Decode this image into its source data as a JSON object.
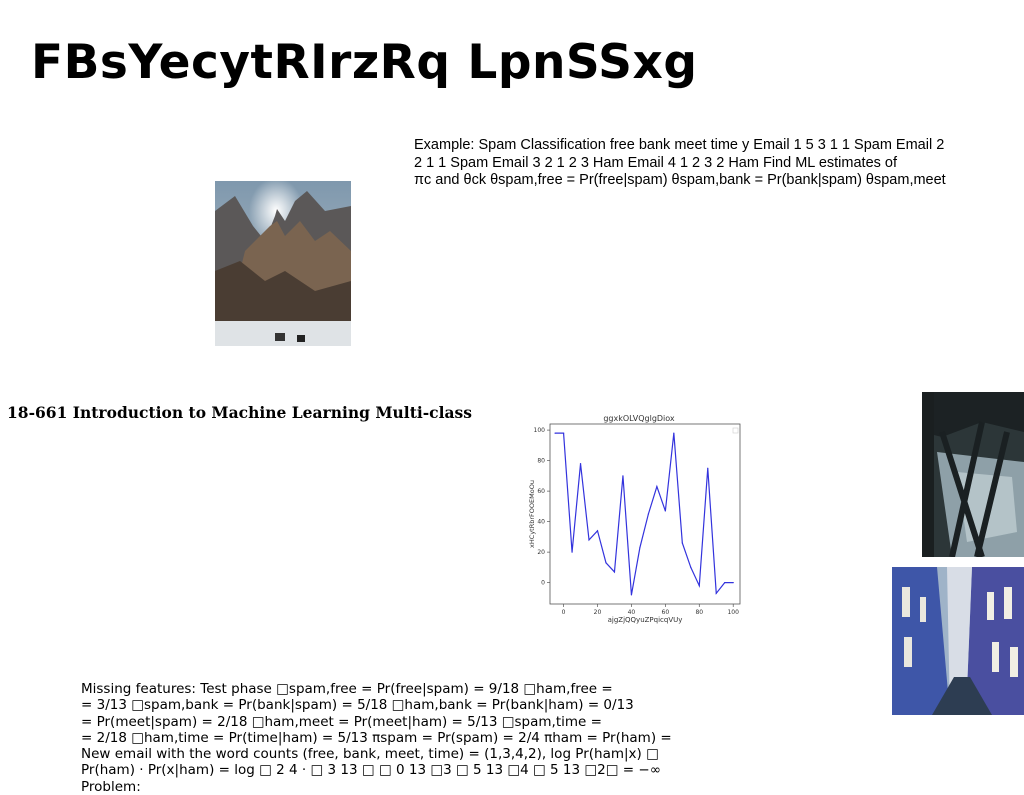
{
  "slide": {
    "title": "FBsYecytRIrzRq LpnSSxg",
    "subtitle": "18-661 Introduction to Machine Learning Multi-class",
    "example_lines": [
      "Example: Spam Classification free bank meet time y Email 1 5 3 1 1 Spam Email 2",
      "2 1 1 Spam Email 3 2 1 2 3 Ham Email 4 1 2 3 2 Ham Find ML estimates of",
      "πc and θck θspam,free = Pr(free|spam) θspam,bank = Pr(bank|spam) θspam,meet"
    ],
    "missing_lines": [
      "Missing features: Test phase □spam,free = Pr(free|spam) = 9/18 □ham,free =",
      "= 3/13 □spam,bank = Pr(bank|spam) = 5/18 □ham,bank = Pr(bank|ham) = 0/13",
      "= Pr(meet|spam) = 2/18 □ham,meet = Pr(meet|ham) = 5/13 □spam,time =",
      "= 2/18 □ham,time = Pr(time|ham) = 5/13 πspam = Pr(spam) = 2/4 πham = Pr(ham) =",
      "New email with the word counts (free, bank, meet, time) = (1,3,4,2), log Pr(ham|x) □",
      "Pr(ham) · Pr(x|ham) = log □ 2 4 · □ 3 13 □ □ 0 13 □3 □ 5 13 □4 □ 5 13 □2□ = −∞ Problem:"
    ]
  },
  "images": {
    "mountain": "mountain-landscape-photo",
    "shadow": "shadow-on-water-photo",
    "street": "narrow-street-photo"
  },
  "colors": {
    "line": "#3333dd",
    "axes": "#555555"
  },
  "chart_data": {
    "type": "line",
    "title": "ggxkOLVQglgDiox",
    "xlabel": "ajgZjQQyuZPqicqVUy",
    "ylabel": "xHCytRbrFOOEMoOu",
    "xlim": [
      -8,
      104
    ],
    "ylim": [
      -14,
      104
    ],
    "xticks": [
      0,
      20,
      40,
      60,
      80,
      100
    ],
    "yticks": [
      0,
      20,
      40,
      60,
      80,
      100
    ],
    "legend": "top-right (empty)",
    "grid": false,
    "series": [
      {
        "x": [
          -5,
          0,
          5,
          10,
          15,
          20,
          25,
          30,
          35,
          40,
          45,
          50,
          55,
          60,
          65,
          70,
          75,
          80,
          85,
          90,
          95,
          100
        ],
        "y": [
          98,
          98,
          20,
          78,
          28,
          34,
          13,
          7,
          70,
          -8,
          23,
          45,
          63,
          47,
          98,
          26,
          10,
          -2,
          75,
          -7,
          0,
          0
        ]
      }
    ]
  }
}
